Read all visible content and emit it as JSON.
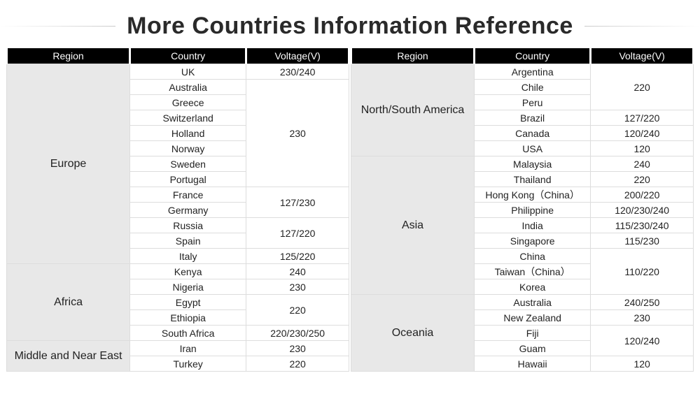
{
  "title": "More Countries Information Reference",
  "columns": [
    "Region",
    "Country",
    "Voltage(V)"
  ],
  "style": {
    "header_bg": "#000000",
    "header_fg": "#ffffff",
    "region_bg": "#e8e8e8",
    "cell_bg": "#ffffff",
    "grid_color": "#dddddd",
    "title_fontsize": 34,
    "title_color": "#2a2a2a",
    "cell_fontsize": 14,
    "region_fontsize": 16
  },
  "left": {
    "regions": [
      {
        "name": "Europe",
        "countries": [
          "UK",
          "Australia",
          "Greece",
          "Switzerland",
          "Holland",
          "Norway",
          "Sweden",
          "Portugal",
          "France",
          "Germany",
          "Russia",
          "Spain",
          "Italy"
        ],
        "voltages": [
          {
            "v": "230/240",
            "span": 1
          },
          {
            "v": "230",
            "span": 7
          },
          {
            "v": "127/230",
            "span": 2
          },
          {
            "v": "127/220",
            "span": 2
          },
          {
            "v": "125/220",
            "span": 1
          }
        ]
      },
      {
        "name": "Africa",
        "countries": [
          "Kenya",
          "Nigeria",
          "Egypt",
          "Ethiopia",
          "South Africa"
        ],
        "voltages": [
          {
            "v": "240",
            "span": 1
          },
          {
            "v": "230",
            "span": 1
          },
          {
            "v": "220",
            "span": 2
          },
          {
            "v": "220/230/250",
            "span": 1
          }
        ]
      },
      {
        "name": "Middle and Near East",
        "countries": [
          "Iran",
          "Turkey"
        ],
        "voltages": [
          {
            "v": "230",
            "span": 1
          },
          {
            "v": "220",
            "span": 1
          }
        ]
      }
    ]
  },
  "right": {
    "regions": [
      {
        "name": "North/South America",
        "countries": [
          "Argentina",
          "Chile",
          "Peru",
          "Brazil",
          "Canada",
          "USA"
        ],
        "voltages": [
          {
            "v": "220",
            "span": 3
          },
          {
            "v": "127/220",
            "span": 1
          },
          {
            "v": "120/240",
            "span": 1
          },
          {
            "v": "120",
            "span": 1
          }
        ]
      },
      {
        "name": "Asia",
        "countries": [
          "Malaysia",
          "Thailand",
          "Hong Kong（China）",
          "Philippine",
          "India",
          "Singapore",
          "China",
          "Taiwan（China）",
          "Korea"
        ],
        "voltages": [
          {
            "v": "240",
            "span": 1
          },
          {
            "v": "220",
            "span": 1
          },
          {
            "v": "200/220",
            "span": 1
          },
          {
            "v": "120/230/240",
            "span": 1
          },
          {
            "v": "115/230/240",
            "span": 1
          },
          {
            "v": "115/230",
            "span": 1
          },
          {
            "v": "110/220",
            "span": 3
          }
        ]
      },
      {
        "name": "Oceania",
        "countries": [
          "Australia",
          "New Zealand",
          "Fiji",
          "Guam",
          "Hawaii"
        ],
        "voltages": [
          {
            "v": "240/250",
            "span": 1
          },
          {
            "v": "230",
            "span": 1
          },
          {
            "v": "120/240",
            "span": 2
          },
          {
            "v": "120",
            "span": 1
          }
        ]
      }
    ]
  }
}
